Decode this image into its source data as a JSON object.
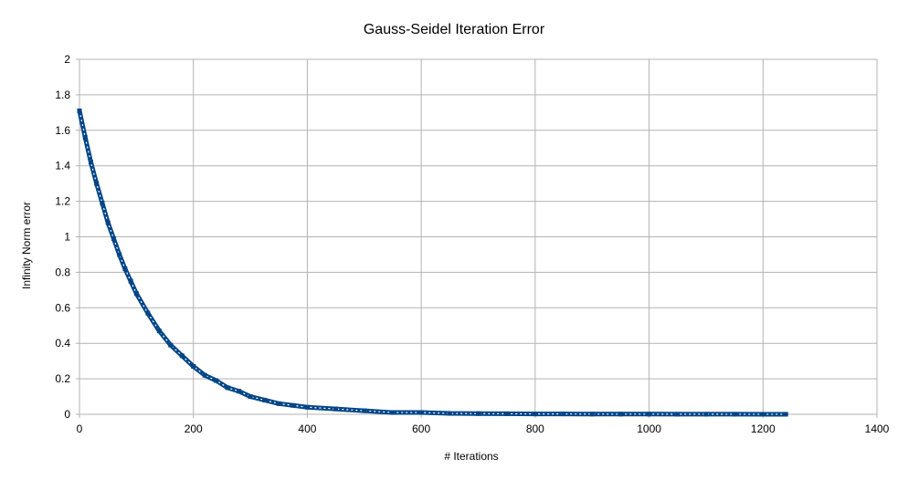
{
  "chart_data": {
    "type": "scatter",
    "title": "Gauss-Seidel Iteration Error",
    "xlabel": "# Iterations",
    "ylabel": "Infinity Norm error",
    "xlim": [
      0,
      1400
    ],
    "ylim": [
      0,
      2
    ],
    "x_ticks": [
      "0",
      "200",
      "400",
      "600",
      "800",
      "1000",
      "1200",
      "1400"
    ],
    "y_ticks": [
      "0",
      "0.2",
      "0.4",
      "0.6",
      "0.8",
      "1",
      "1.2",
      "1.4",
      "1.6",
      "1.8",
      "2"
    ],
    "grid": true,
    "legend": "none",
    "series_color": "#004586",
    "series": [
      {
        "x": [
          0,
          10,
          20,
          30,
          40,
          50,
          60,
          70,
          80,
          90,
          100,
          120,
          140,
          160,
          180,
          200,
          220,
          240,
          260,
          280,
          300,
          325,
          350,
          375,
          400,
          450,
          500,
          550,
          600,
          650,
          700,
          750,
          800,
          850,
          900,
          950,
          1000,
          1050,
          1100,
          1150,
          1200,
          1240
        ],
        "y": [
          1.71,
          1.56,
          1.42,
          1.3,
          1.19,
          1.08,
          0.99,
          0.9,
          0.82,
          0.75,
          0.68,
          0.57,
          0.47,
          0.39,
          0.33,
          0.27,
          0.22,
          0.19,
          0.15,
          0.13,
          0.1,
          0.08,
          0.06,
          0.05,
          0.04,
          0.03,
          0.02,
          0.01,
          0.01,
          0.005,
          0.004,
          0.003,
          0.002,
          0.002,
          0.001,
          0.001,
          0.001,
          0.0005,
          0.0005,
          0.0004,
          0.0003,
          0.0003
        ]
      }
    ]
  }
}
